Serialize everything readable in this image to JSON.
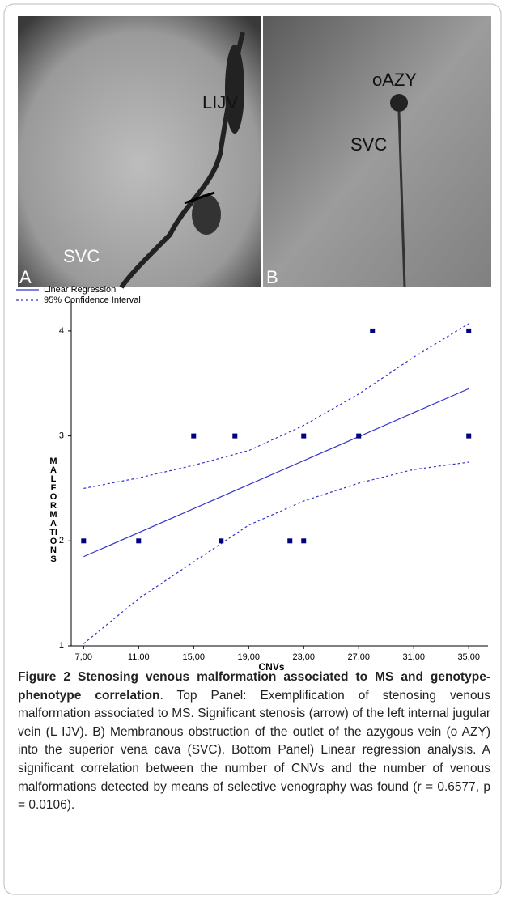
{
  "panels": [
    {
      "letter": "A",
      "labels": [
        "LIJV",
        "SVC"
      ]
    },
    {
      "letter": "B",
      "labels": [
        "oAZY",
        "SVC"
      ]
    }
  ],
  "chart_data": {
    "type": "scatter",
    "x_label": "CNVs",
    "y_label": "MALFORMATIONS",
    "xlim": [
      6.1,
      36.4
    ],
    "ylim": [
      1,
      4.3
    ],
    "xticks": [
      {
        "value": 7,
        "label": "7,00"
      },
      {
        "value": 11,
        "label": "11,00"
      },
      {
        "value": 15,
        "label": "15,00"
      },
      {
        "value": 19,
        "label": "19,00"
      },
      {
        "value": 23,
        "label": "23,00"
      },
      {
        "value": 27,
        "label": "27,00"
      },
      {
        "value": 31,
        "label": "31,00"
      },
      {
        "value": 35,
        "label": "35,00"
      }
    ],
    "yticks": [
      1,
      2,
      3,
      4
    ],
    "points": {
      "color": "#000080",
      "x": [
        7,
        11,
        15,
        17,
        18,
        22,
        23,
        23,
        27,
        28,
        35,
        35
      ],
      "values": [
        2,
        2,
        3,
        2,
        3,
        2,
        3,
        2,
        3,
        4,
        4,
        3
      ]
    },
    "series": [
      {
        "name": "Linear Regression",
        "color": "#3333cc",
        "style": "solid",
        "x": [
          7,
          35
        ],
        "values": [
          1.85,
          3.45
        ]
      },
      {
        "name": "95% Confidence Interval",
        "color": "#3333cc",
        "style": "dashed",
        "x": [
          7,
          11,
          15,
          19,
          23,
          27,
          31,
          35
        ],
        "upper": [
          2.5,
          2.6,
          2.72,
          2.86,
          3.1,
          3.4,
          3.75,
          4.07
        ],
        "lower": [
          1.02,
          1.45,
          1.8,
          2.15,
          2.38,
          2.55,
          2.68,
          2.75
        ]
      }
    ]
  },
  "caption": {
    "title": "Figure 2 Stenosing venous malformation associated to MS and genotype-phenotype correlation",
    "text": ". Top Panel: Exemplification of stenosing venous malformation associated to MS. Significant stenosis (arrow) of the left internal jugular vein (L IJV). B) Membranous obstruction of the outlet of the azygous vein (o AZY) into the superior vena cava (SVC). Bottom Panel) Linear regression analysis. A significant correlation between the number of CNVs and the number of venous malformations detected by means of selective venography was found (r = 0.6577, p = 0.0106)."
  }
}
